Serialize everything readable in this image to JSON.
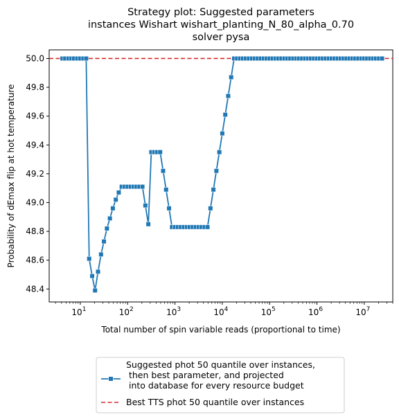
{
  "chart_data": {
    "type": "line",
    "title": [
      "Strategy plot: Suggested parameters",
      "instances Wishart wishart_planting_N_80_alpha_0.70",
      "solver pysa"
    ],
    "xlabel": "Total number of spin variable reads (proportional to time)",
    "ylabel": "Probability of dEmax flip at hot temperature",
    "xscale": "log",
    "xlim": [
      2.2,
      40000000
    ],
    "ylim": [
      48.31,
      50.06
    ],
    "xticks": [
      {
        "value": 10,
        "base": "10",
        "exp": "1"
      },
      {
        "value": 100,
        "base": "10",
        "exp": "2"
      },
      {
        "value": 1000,
        "base": "10",
        "exp": "3"
      },
      {
        "value": 10000,
        "base": "10",
        "exp": "4"
      },
      {
        "value": 100000,
        "base": "10",
        "exp": "5"
      },
      {
        "value": 1000000,
        "base": "10",
        "exp": "6"
      },
      {
        "value": 10000000,
        "base": "10",
        "exp": "7"
      }
    ],
    "yticks": [
      "48.4",
      "48.6",
      "48.8",
      "49.0",
      "49.2",
      "49.4",
      "49.6",
      "49.8",
      "50.0"
    ],
    "grid": false,
    "legend_position": "below plot",
    "series": [
      {
        "name": "Suggested phot 50 quantile over instances,\n then best parameter, and projected\n into database for every resource budget",
        "color": "#1f77b4",
        "marker": "square",
        "line_style": "solid",
        "x": [
          4.2,
          4.8,
          5.6,
          6.5,
          7.4,
          8.6,
          10,
          11.6,
          13.3,
          15.4,
          17.8,
          20.5,
          23.7,
          27.4,
          31.6,
          36.5,
          42.2,
          48.7,
          56.2,
          64.9,
          75,
          86.6,
          100,
          115.5,
          133.4,
          154,
          177.8,
          205.4,
          237.1,
          273.8,
          316.2,
          365.2,
          421.7,
          487,
          562.3,
          649.4,
          749.9,
          866,
          1000,
          1154.8,
          1333.5,
          1539.9,
          1778.3,
          2053.5,
          2371.4,
          2738.4,
          3162.3,
          3651.7,
          4217,
          4869.7,
          5623.4,
          6493.8,
          7498.9,
          8659.6,
          10000,
          11547.8,
          13335.2,
          15399.3,
          17782.8,
          20535,
          23713.7,
          27384.2,
          31622.8,
          36517.4,
          42169.7,
          48696.8,
          56234.1,
          64938.2,
          74989.4,
          86596.4,
          100000,
          115478,
          133352,
          153993,
          177828,
          205350,
          237137,
          273842,
          316228,
          365174,
          421697,
          486968,
          562341,
          649382,
          749894,
          865964,
          1000000,
          1154782,
          1333521,
          1539927,
          1778279,
          2053525,
          2371374,
          2738420,
          3162278,
          3651741,
          4216965,
          4869675,
          5623413,
          6493816,
          7498942,
          8659643,
          10000000,
          11547820,
          13335214,
          15399265,
          17782794,
          20535250,
          23713737
        ],
        "y": [
          50.0,
          50.0,
          50.0,
          50.0,
          50.0,
          50.0,
          50.0,
          50.0,
          50.0,
          48.61,
          48.49,
          48.39,
          48.52,
          48.64,
          48.73,
          48.82,
          48.89,
          48.96,
          49.02,
          49.07,
          49.11,
          49.11,
          49.11,
          49.11,
          49.11,
          49.11,
          49.11,
          49.11,
          48.98,
          48.85,
          49.35,
          49.35,
          49.35,
          49.35,
          49.22,
          49.09,
          48.96,
          48.83,
          48.83,
          48.83,
          48.83,
          48.83,
          48.83,
          48.83,
          48.83,
          48.83,
          48.83,
          48.83,
          48.83,
          48.83,
          48.96,
          49.09,
          49.22,
          49.35,
          49.48,
          49.61,
          49.74,
          49.87,
          50.0,
          50.0,
          50.0,
          50.0,
          50.0,
          50.0,
          50.0,
          50.0,
          50.0,
          50.0,
          50.0,
          50.0,
          50.0,
          50.0,
          50.0,
          50.0,
          50.0,
          50.0,
          50.0,
          50.0,
          50.0,
          50.0,
          50.0,
          50.0,
          50.0,
          50.0,
          50.0,
          50.0,
          50.0,
          50.0,
          50.0,
          50.0,
          50.0,
          50.0,
          50.0,
          50.0,
          50.0,
          50.0,
          50.0,
          50.0,
          50.0,
          50.0,
          50.0,
          50.0,
          50.0,
          50.0,
          50.0,
          50.0,
          50.0,
          50.0,
          50.0
        ]
      }
    ],
    "reference_lines": [
      {
        "name": "Best TTS phot 50 quantile over instances",
        "orientation": "horizontal",
        "y": 50.0,
        "color": "#d62728",
        "line_style": "dashed"
      }
    ]
  }
}
